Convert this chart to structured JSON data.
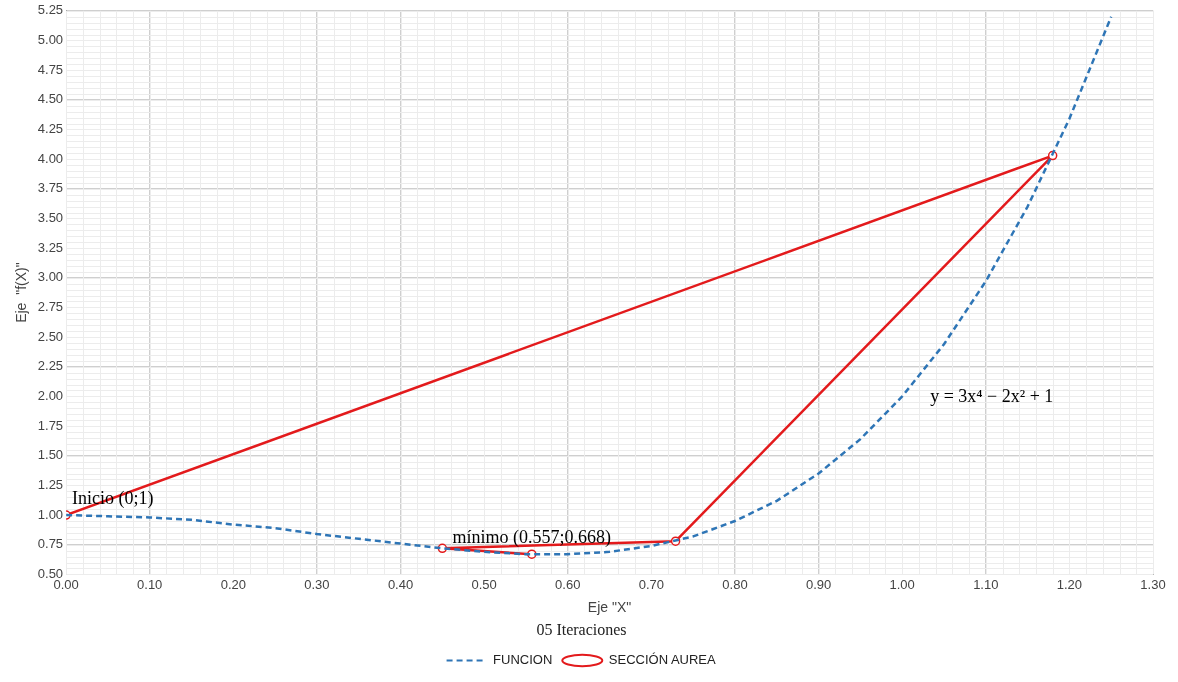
{
  "chart_data": {
    "type": "line",
    "xlabel": "Eje \"X\"",
    "ylabel": "Eje  \"f(X)\"",
    "legend_title": "05 Iteraciones",
    "legend": "bottom",
    "grid": true,
    "xlim": [
      0,
      1.3
    ],
    "xticks": [
      {
        "value": 0,
        "label": "0.00"
      },
      {
        "value": 0.1,
        "label": "0.10"
      },
      {
        "value": 0.2,
        "label": "0.20"
      },
      {
        "value": 0.3,
        "label": "0.30"
      },
      {
        "value": 0.4,
        "label": "0.40"
      },
      {
        "value": 0.5,
        "label": "0.50"
      },
      {
        "value": 0.6,
        "label": "0.60"
      },
      {
        "value": 0.7,
        "label": "0.70"
      },
      {
        "value": 0.8,
        "label": "0.80"
      },
      {
        "value": 0.9,
        "label": "0.90"
      },
      {
        "value": 1,
        "label": "1.00"
      },
      {
        "value": 1.1,
        "label": "1.10"
      },
      {
        "value": 1.2,
        "label": "1.20"
      },
      {
        "value": 1.3,
        "label": "1.30"
      }
    ],
    "ylim": [
      0.5,
      5.25
    ],
    "yticks": [
      {
        "value": 0.5,
        "label": "0.50"
      },
      {
        "value": 0.75,
        "label": "0.75"
      },
      {
        "value": 1,
        "label": "1.00"
      },
      {
        "value": 1.25,
        "label": "1.25"
      },
      {
        "value": 1.5,
        "label": "1.50"
      },
      {
        "value": 1.75,
        "label": "1.75"
      },
      {
        "value": 2,
        "label": "2.00"
      },
      {
        "value": 2.25,
        "label": "2.25"
      },
      {
        "value": 2.5,
        "label": "2.50"
      },
      {
        "value": 2.75,
        "label": "2.75"
      },
      {
        "value": 3,
        "label": "3.00"
      },
      {
        "value": 3.25,
        "label": "3.25"
      },
      {
        "value": 3.5,
        "label": "3.50"
      },
      {
        "value": 3.75,
        "label": "3.75"
      },
      {
        "value": 4,
        "label": "4.00"
      },
      {
        "value": 4.25,
        "label": "4.25"
      },
      {
        "value": 4.5,
        "label": "4.50"
      },
      {
        "value": 4.75,
        "label": "4.75"
      },
      {
        "value": 5,
        "label": "5.00"
      },
      {
        "value": 5.25,
        "label": "5.25"
      }
    ],
    "series": [
      {
        "name": "FUNCION",
        "color": "#2e75b6",
        "line_style": "dashed",
        "marker": "none",
        "x": [
          0,
          0.05,
          0.1,
          0.15,
          0.2,
          0.25,
          0.3,
          0.35,
          0.4,
          0.45,
          0.5,
          0.55,
          0.6,
          0.65,
          0.7,
          0.75,
          0.8,
          0.85,
          0.9,
          0.95,
          1,
          1.05,
          1.1,
          1.15,
          1.2,
          1.25
        ],
        "values": [
          1,
          0.99,
          0.98,
          0.96,
          0.92,
          0.89,
          0.84,
          0.8,
          0.76,
          0.72,
          0.69,
          0.67,
          0.67,
          0.69,
          0.74,
          0.82,
          0.95,
          1.12,
          1.35,
          1.64,
          2,
          2.44,
          2.97,
          3.6,
          4.34,
          5.2
        ]
      },
      {
        "name": "SECCIÓN AUREA",
        "color": "#e31a1c",
        "line_style": "solid",
        "marker": "circle",
        "x": [
          0,
          1.18,
          0.729,
          0.45,
          0.557
        ],
        "values": [
          1,
          4.03,
          0.78,
          0.72,
          0.67
        ]
      }
    ],
    "annotations": [
      {
        "text": "Inicio (0;1)",
        "x": 0,
        "y": 1
      },
      {
        "text": "mínimo (0.557;0.668)",
        "x": 0.557,
        "y": 0.67
      },
      "y = 3x⁴ − 2x² + 1"
    ]
  }
}
